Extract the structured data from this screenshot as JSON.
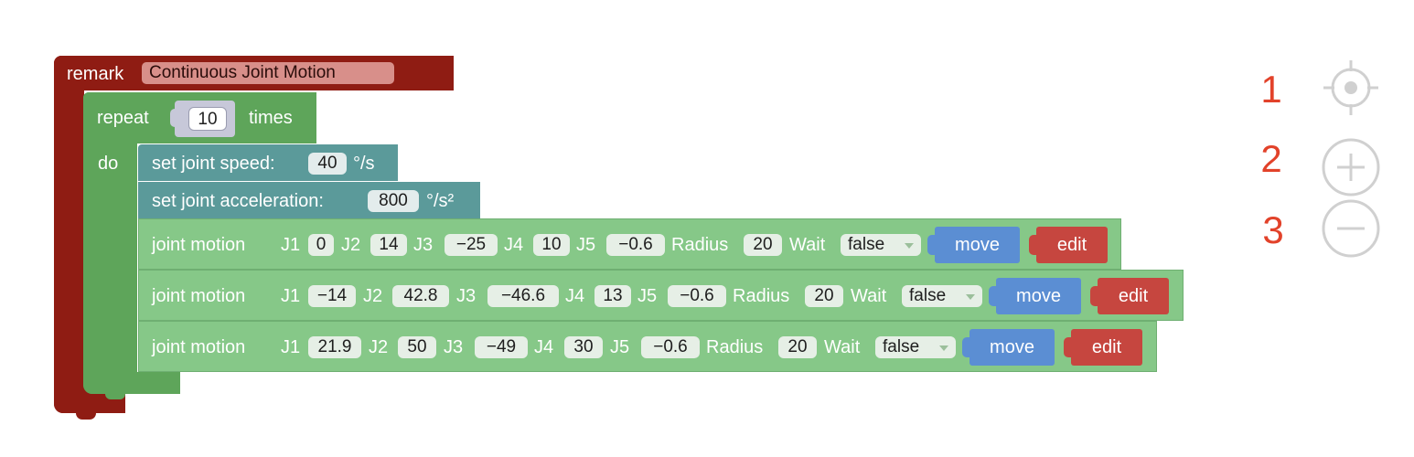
{
  "remark": {
    "label": "remark",
    "value": "Continuous Joint Motion"
  },
  "repeat": {
    "label": "repeat",
    "count": "10",
    "times_label": "times",
    "do_label": "do"
  },
  "speed": {
    "label": "set joint speed:",
    "value": "40",
    "unit": "°/s"
  },
  "accel": {
    "label": "set joint acceleration:",
    "value": "800",
    "unit": "°/s²"
  },
  "motion_label": "joint motion",
  "j_labels": [
    "J1",
    "J2",
    "J3",
    "J4",
    "J5"
  ],
  "radius_label": "Radius",
  "wait_label": "Wait",
  "motions": [
    {
      "j1": "0",
      "j2": "14",
      "j3": "−25",
      "j4": "10",
      "j5": "−0.6",
      "radius": "20",
      "wait": "false",
      "move": "move",
      "edit": "edit"
    },
    {
      "j1": "−14",
      "j2": "42.8",
      "j3": "−46.6",
      "j4": "13",
      "j5": "−0.6",
      "radius": "20",
      "wait": "false",
      "move": "move",
      "edit": "edit"
    },
    {
      "j1": "21.9",
      "j2": "50",
      "j3": "−49",
      "j4": "30",
      "j5": "−0.6",
      "radius": "20",
      "wait": "false",
      "move": "move",
      "edit": "edit"
    }
  ],
  "controls": [
    {
      "number": "1",
      "icon": "crosshair-icon"
    },
    {
      "number": "2",
      "icon": "zoom-in-icon"
    },
    {
      "number": "3",
      "icon": "zoom-out-icon"
    }
  ],
  "colors": {
    "remark": "#8f1c13",
    "repeat": "#5ea55a",
    "teal": "#5b9a9a",
    "motion": "#86c888",
    "move": "#5b8ed3",
    "edit": "#c6463f",
    "number": "#e2422a"
  }
}
